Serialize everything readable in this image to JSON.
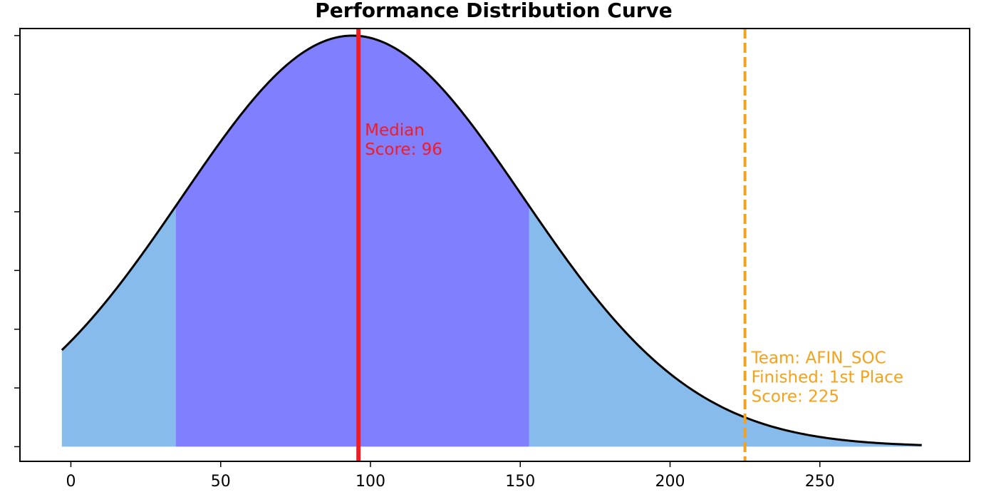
{
  "chart_data": {
    "type": "area",
    "title": "Performance Distribution Curve",
    "xlabel": "",
    "ylabel": "",
    "xlim": [
      -17,
      300
    ],
    "ylim": [
      -0.00025,
      0.00712
    ],
    "x_ticks": [
      0,
      50,
      100,
      150,
      200,
      250
    ],
    "y_tick_count": 8,
    "y_tick_labels_shown": false,
    "grid": false,
    "curve": {
      "type": "normal",
      "mean": 94,
      "std": 57,
      "x_start": -3,
      "x_end": 284,
      "color": "#000000"
    },
    "shaded_regions": [
      {
        "from": -3,
        "to": 35,
        "color": "#87bbec"
      },
      {
        "from": 35,
        "to": 153,
        "color": "#8080ff"
      },
      {
        "from": 153,
        "to": 284,
        "color": "#87bbec"
      }
    ],
    "markers": [
      {
        "name": "median",
        "x": 96,
        "style": "solid",
        "color": "#ee1c24",
        "label_lines": [
          "Median",
          "Score: 96"
        ]
      },
      {
        "name": "team",
        "x": 225,
        "style": "dashed",
        "color": "#f5a21b",
        "label_lines": [
          "Team: AFIN_SOC",
          "Finished: 1st Place",
          "Score: 225"
        ]
      }
    ]
  }
}
